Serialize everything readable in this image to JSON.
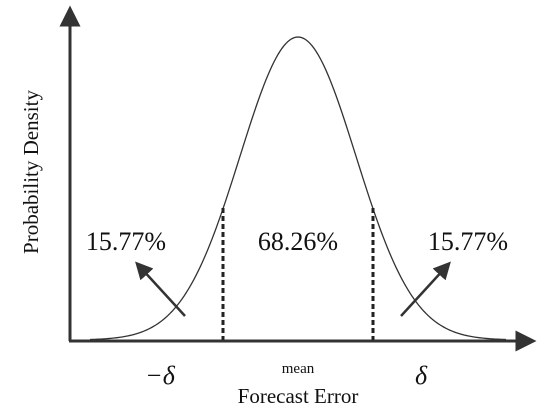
{
  "axes": {
    "y_label": "Probability Density",
    "x_label": "Forecast Error"
  },
  "ticks": {
    "left": "−δ",
    "center": "mean",
    "right": "δ"
  },
  "regions": {
    "left": "15.77%",
    "center": "68.26%",
    "right": "15.77%"
  }
}
